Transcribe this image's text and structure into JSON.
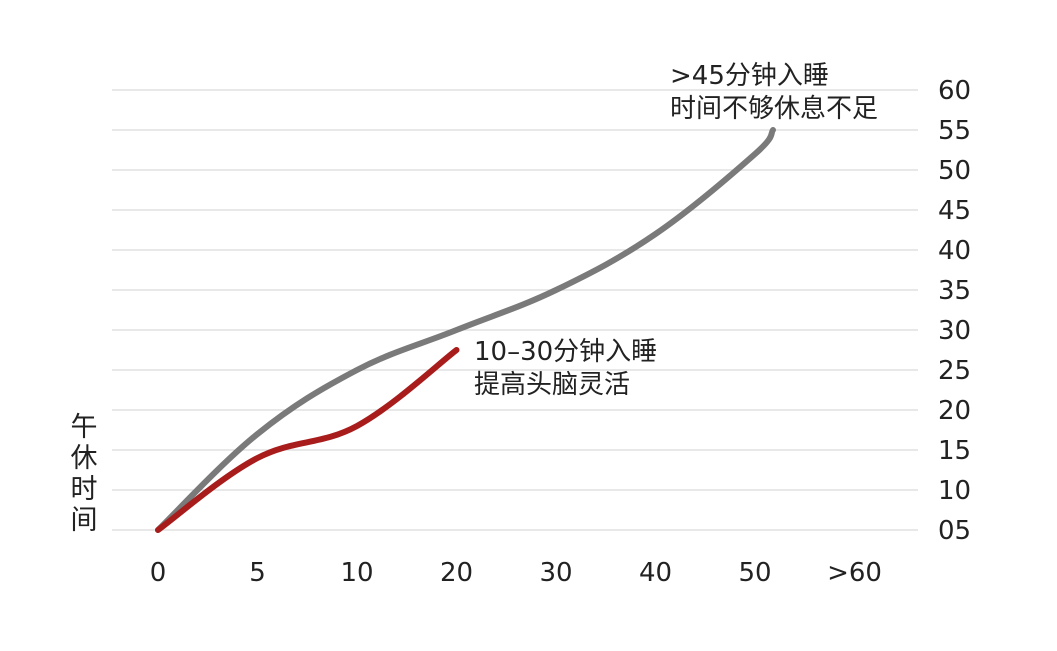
{
  "chart_data": {
    "type": "line",
    "title": "",
    "xlabel": "",
    "ylabel": "午休时间",
    "x_ticks": [
      "0",
      "5",
      "10",
      "20",
      "30",
      "40",
      "50",
      ">60"
    ],
    "y_ticks": [
      "05",
      "10",
      "15",
      "20",
      "25",
      "30",
      "35",
      "40",
      "45",
      "50",
      "55",
      "60"
    ],
    "grid": true,
    "series": [
      {
        "color": "#7a7a7a",
        "points": [
          {
            "x": "0",
            "y": 5
          },
          {
            "x": "5",
            "y": 17
          },
          {
            "x": "10",
            "y": 25
          },
          {
            "x": "20",
            "y": 30
          },
          {
            "x": "30",
            "y": 35
          },
          {
            "x": "40",
            "y": 42
          },
          {
            "x": "50",
            "y": 52
          },
          {
            "x": "50",
            "y": 55
          }
        ]
      },
      {
        "color": "#a81c1c",
        "points": [
          {
            "x": "0",
            "y": 5
          },
          {
            "x": "5",
            "y": 14
          },
          {
            "x": "10",
            "y": 18
          },
          {
            "x": "20",
            "y": 27.5
          }
        ]
      }
    ],
    "annotations": [
      {
        "lines": [
          ">45分钟入睡",
          "时间不够休息不足"
        ]
      },
      {
        "lines": [
          "10–30分钟入睡",
          "提高头脑灵活"
        ]
      }
    ]
  }
}
